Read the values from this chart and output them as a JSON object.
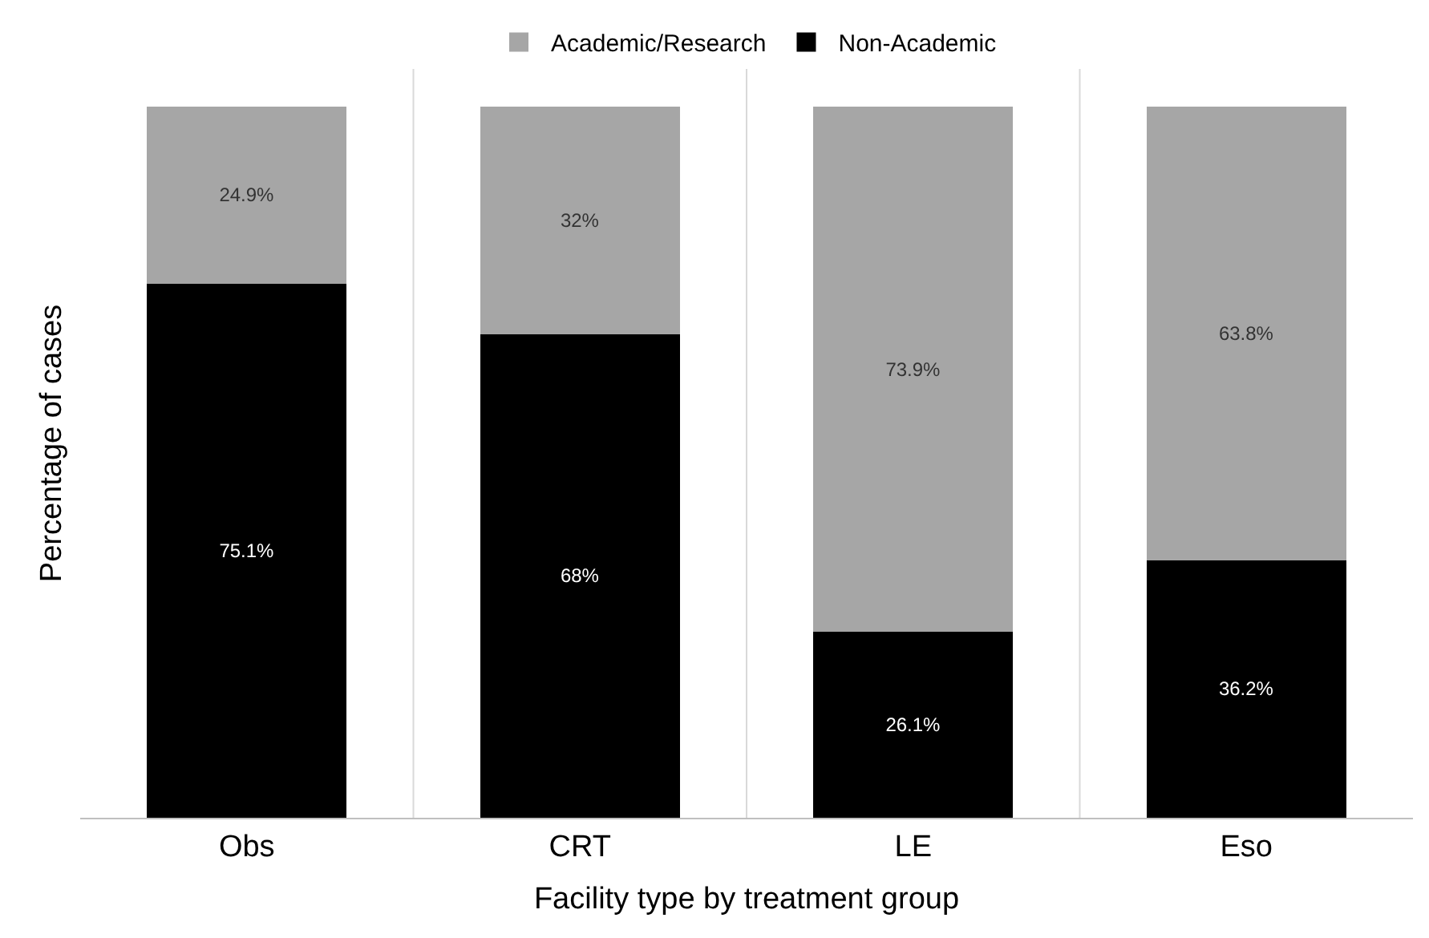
{
  "chart_data": {
    "type": "bar",
    "stacked": true,
    "xlabel": "Facility type by treatment group",
    "ylabel": "Percentage of cases",
    "categories": [
      "Obs",
      "CRT",
      "LE",
      "Eso"
    ],
    "series": [
      {
        "name": "Non-Academic",
        "color": "#000000",
        "values": [
          75.1,
          68,
          26.1,
          36.2
        ],
        "value_labels": [
          "75.1%",
          "68%",
          "26.1%",
          "36.2%"
        ]
      },
      {
        "name": "Academic/Research",
        "color": "#a6a6a6",
        "values": [
          24.9,
          32,
          73.9,
          63.8
        ],
        "value_labels": [
          "24.9%",
          "32%",
          "73.9%",
          "63.8%"
        ]
      }
    ],
    "legend": "top",
    "grid": "x",
    "tick_labels": "x"
  }
}
